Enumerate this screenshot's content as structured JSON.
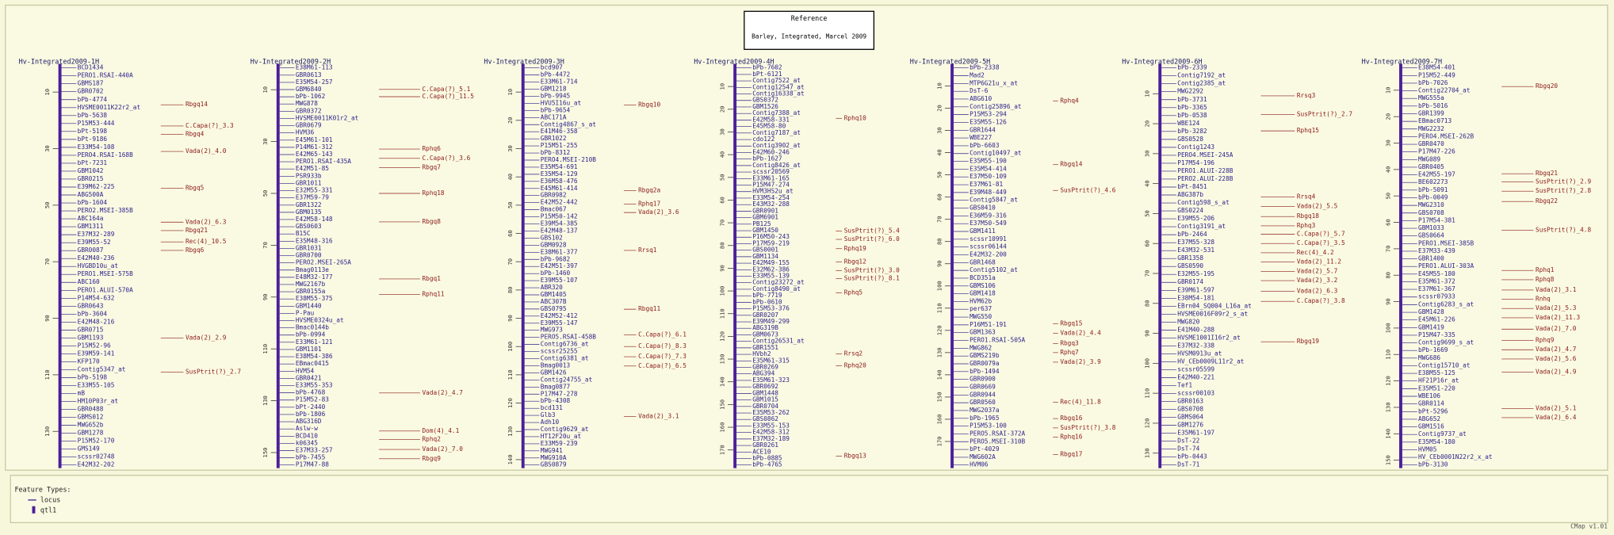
{
  "header": {
    "title": "Reference",
    "subtitle": "Barley, Integrated, Marcel 2009"
  },
  "maps": [
    {
      "title": "Hv-Integrated2009-1H",
      "ylim": [
        0,
        143
      ],
      "ticks": [
        10,
        30,
        50,
        70,
        90,
        110,
        130
      ],
      "loci": [
        "BCD1434",
        "PERO1.RSAI-440A",
        "GBMS187",
        "GBR0702",
        "bPb-4774",
        "HVSME0011K22r2_at",
        "bPb-5638",
        "P15M53-444",
        "bPt-5198",
        "bPt-9186",
        "E33M54-108",
        "PERO4.RSAI-168B",
        "bPt-7231",
        "GBM1042",
        "GBR0215",
        "E39M62-225",
        "ABG500A",
        "bPb-1604",
        "PERO2.MSEI-385B",
        "ABC164a",
        "GBM1311",
        "E37M32-289",
        "E39M55-52",
        "GBR0087",
        "E42M40-236",
        "HVGBD10u_at",
        "PERO1.MSEI-575B",
        "ABC160",
        "PERO1.ALUI-570A",
        "P14M54-632",
        "GBR0643",
        "bPb-3604",
        "E42M48-216",
        "GBR0715",
        "GBM1193",
        "P15M52-96",
        "E39M59-141",
        "KFP170",
        "Contig5347_at",
        "bPb-5198",
        "E33M55-105",
        "mB",
        "HM10P03r_at",
        "GBR0488",
        "GBMS012",
        "MWG652b",
        "GBM1278",
        "P15M52-170",
        "GMS149",
        "scssr02748",
        "E42M32-202"
      ],
      "qtls": [
        {
          "name": "Rbgq14",
          "position": 14.5
        },
        {
          "name": "C.Capa(?)_3.3",
          "position": 22
        },
        {
          "name": "Rbgq4",
          "position": 25
        },
        {
          "name": "Vada(2)_4.0",
          "position": 31
        },
        {
          "name": "Rbgq5",
          "position": 44
        },
        {
          "name": "Vada(2)_6.3",
          "position": 56
        },
        {
          "name": "Rbgq21",
          "position": 59
        },
        {
          "name": "Rec(4)_10.5",
          "position": 63
        },
        {
          "name": "Rbgq6",
          "position": 66
        },
        {
          "name": "Vada(2)_2.9",
          "position": 97
        },
        {
          "name": "SusPtrit(?)_2.7",
          "position": 109
        }
      ]
    },
    {
      "title": "Hv-Integrated2009-2H",
      "ylim": [
        0,
        156
      ],
      "ticks": [
        10,
        30,
        50,
        70,
        90,
        110,
        130,
        150
      ],
      "loci": [
        "E38M61-113",
        "GBR0613",
        "E35M54-257",
        "GBM6840",
        "bPb-1062",
        "MWG878",
        "GBR0372",
        "HVSME0011K01r2_at",
        "GBR0679",
        "HVM36",
        "E45M61-101",
        "P14M61-312",
        "E42M65-143",
        "PERO1.RSAI-435A",
        "E42M51-85",
        "PSR933b",
        "GBR1011",
        "E32M55-331",
        "E37M59-79",
        "GBR1322",
        "GBM0135",
        "E42M58-148",
        "GBS0603",
        "B15C",
        "E35M48-316",
        "GBR1031",
        "GBR0700",
        "PERO2.MSEI-265A",
        "Bmag0113e",
        "E48M32-177",
        "MWG2167b",
        "GBR0155a",
        "E38M55-375",
        "GBM1440",
        "P-Pau",
        "HVSME0324u_at",
        "Bmac0144b",
        "bPb-0994",
        "E33M61-121",
        "GBM1101",
        "E38M54-386",
        "EBmac0415",
        "HVM54",
        "GBR0421",
        "E33M55-353",
        "bPb-4768",
        "P15M52-83",
        "bPt-2440",
        "bPb-1806",
        "ABG316D",
        "Aslw-w",
        "BCD410",
        "k06345",
        "E37M33-257",
        "bPb-7455",
        "P17M47-88"
      ],
      "qtls": [
        {
          "name": "C.Capa(?)_5.1",
          "position": 9.9
        },
        {
          "name": "C.Capa(?)_11.5",
          "position": 12.7
        },
        {
          "name": "Rphq6",
          "position": 32.9
        },
        {
          "name": "C.Capa(?)_3.6",
          "position": 36.5
        },
        {
          "name": "Rbgq7",
          "position": 40
        },
        {
          "name": "Rphq18",
          "position": 50
        },
        {
          "name": "Rbgq8",
          "position": 61
        },
        {
          "name": "Rbgq1",
          "position": 83
        },
        {
          "name": "Rphq11",
          "position": 89
        },
        {
          "name": "Vada(2)_4.7",
          "position": 127
        },
        {
          "name": "Dom(4)_4.1",
          "position": 141.7
        },
        {
          "name": "Rphq2",
          "position": 145
        },
        {
          "name": "Vada(2)_7.0",
          "position": 148.8
        },
        {
          "name": "Rbgq9",
          "position": 152.4
        }
      ]
    },
    {
      "title": "Hv-Integrated2009-3H",
      "ylim": [
        0,
        143
      ],
      "ticks": [
        10,
        20,
        30,
        40,
        50,
        60,
        70,
        80,
        90,
        100,
        110,
        120,
        130,
        140
      ],
      "loci": [
        "bcd907",
        "bPb-4472",
        "E33M61-714",
        "GBM1218",
        "bPb-9945",
        "HVU5I16u_at",
        "bPb-9654",
        "ABC171A",
        "Contig4867_s_at",
        "E41M46-358",
        "GBR1022",
        "P15M51-255",
        "bPb-8312",
        "PERO4.MSEI-210B",
        "E35M54-691",
        "E35M54-129",
        "E36M58-476",
        "E45M61-414",
        "GBR0982",
        "E42M52-442",
        "Bmac067",
        "P15M50-142",
        "E39M54-385",
        "E42M48-137",
        "GBS102",
        "GBM0928",
        "E38M61-377",
        "bPb-9682",
        "E42M51-397",
        "bPb-1460",
        "E39M55-107",
        "ABR320",
        "GBM1405",
        "ABC307B",
        "GBS0795",
        "E42M52-412",
        "E39M55-147",
        "MWG973",
        "PERO5.RSAI-458B",
        "Contig6736_at",
        "scssr25255",
        "Contig6381_at",
        "Bmag0013",
        "GBM1426",
        "Contig24755_at",
        "Bmag0877",
        "P17M47-278",
        "bPb-4308",
        "bcd131",
        "Glb3",
        "Adh10",
        "Contig9629_at",
        "HT12F20u_at",
        "E33M59-239",
        "MWG941",
        "MWG910A",
        "GBS0879"
      ],
      "qtls": [
        {
          "name": "Rbgq10",
          "position": 14.6
        },
        {
          "name": "Rbgq2a",
          "position": 44.9
        },
        {
          "name": "Rphq17",
          "position": 49.6
        },
        {
          "name": "Vada(2)_3.6",
          "position": 52.6
        },
        {
          "name": "Rrsq1",
          "position": 66
        },
        {
          "name": "Rbgq11",
          "position": 86.8
        },
        {
          "name": "C.Capa(?)_6.1",
          "position": 95.9
        },
        {
          "name": "C.Capa(?)_8.3",
          "position": 100
        },
        {
          "name": "C.Capa(?)_7.3",
          "position": 103.6
        },
        {
          "name": "C.Capa(?)_6.5",
          "position": 106.9
        },
        {
          "name": "Vada(2)_3.1",
          "position": 124.8
        }
      ]
    },
    {
      "title": "Hv-Integrated2009-4H",
      "ylim": [
        0,
        178
      ],
      "ticks": [
        10,
        20,
        30,
        40,
        50,
        60,
        70,
        80,
        90,
        100,
        110,
        120,
        130,
        140,
        150,
        160,
        170
      ],
      "loci": [
        "bPb-7602",
        "bPt-6121",
        "Contig7522_at",
        "Contig12547_at",
        "Contig16338_at",
        "GBS0372",
        "GBM1526",
        "Contig7388_at",
        "E42M58-331",
        "E45M58-80",
        "Contig7187_at",
        "cdo122",
        "Contig3902_at",
        "E42M60-246",
        "bPb-1627",
        "Contig8426_at",
        "scssr20569",
        "E33M61-165",
        "P15M47-274",
        "HVM3HS2u_at",
        "E33M54-254",
        "E43M32-288",
        "GBR0901",
        "GBM6901",
        "PB125",
        "GBM1450",
        "P16M50-243",
        "P17M59-219",
        "GBS0001",
        "GBM1134",
        "E42M49-155",
        "E32M62-386",
        "E33M55-139",
        "Contig23272_at",
        "Contig8490_at",
        "bPb-7719",
        "bPb-0610",
        "P15M53-376",
        "GBR0207",
        "E39M49-299",
        "ABG319B",
        "GBM0673",
        "Contig26531_at",
        "GBR1551",
        "HVbh2",
        "E35M61-315",
        "GBR0269",
        "ABG394",
        "E35M61-323",
        "GBR0692",
        "GBM1448",
        "GBM1015",
        "GBR0704",
        "E35M53-262",
        "GBS0862",
        "E33M55-153",
        "E42M58-312",
        "E37M32-189",
        "GBR0261",
        "ACE10",
        "bPb-0885",
        "bPb-4765"
      ],
      "qtls": [
        {
          "name": "Rphq10",
          "position": 24
        },
        {
          "name": "SusPtrit(?)_5.4",
          "position": 73.6
        },
        {
          "name": "SusPtrit(?)_6.0",
          "position": 77.3
        },
        {
          "name": "Rphq19",
          "position": 81.4
        },
        {
          "name": "Rbgq12",
          "position": 87.3
        },
        {
          "name": "SusPtrit(?)_3.0",
          "position": 91
        },
        {
          "name": "SusPtrit(?)_8.1",
          "position": 94.5
        },
        {
          "name": "Rphq5",
          "position": 100.9
        },
        {
          "name": "Rrsq2",
          "position": 127.7
        },
        {
          "name": "Rphq20",
          "position": 133
        },
        {
          "name": "Rbgq13",
          "position": 172.7
        }
      ]
    },
    {
      "title": "Hv-Integrated2009-5H",
      "ylim": [
        0,
        182
      ],
      "ticks": [
        10,
        20,
        30,
        40,
        50,
        60,
        70,
        80,
        90,
        100,
        110,
        120,
        130,
        140,
        150,
        160,
        170
      ],
      "loci": [
        "bPb-2338",
        "Mad2",
        "MTP6G21u_x_at",
        "DsT-6",
        "ABG610",
        "Contig25896_at",
        "P15M53-294",
        "E35M55-126",
        "GBR1644",
        "WBE227",
        "bPb-6603",
        "Contig10497_at",
        "E35M55-190",
        "E35M54-414",
        "E37M50-109",
        "E37M61-81",
        "E39M48-449",
        "Contig5847_at",
        "GBS0410",
        "E36M59-316",
        "E37M50-549",
        "GBM1411",
        "scssr10991",
        "scssr06144",
        "E42M32-200",
        "GBR1468",
        "Contig5102_at",
        "BCD351a",
        "GBMS106",
        "GBM1418",
        "HVM62b",
        "per637",
        "MWG550",
        "P16M51-191",
        "GBM1363",
        "PERO1.RSAI-505A",
        "MWG862",
        "GBMS219b",
        "GBR0079a",
        "bPb-1494",
        "GBR0900",
        "GBR0669",
        "GBR0944",
        "GBR0560",
        "MWG2037a",
        "bPb-1965",
        "P15M53-100",
        "PERO5.RSAI-372A",
        "PERO5.MSEI-310B",
        "bPt-4029",
        "MWG602A",
        "HVM06"
      ],
      "qtls": [
        {
          "name": "Rphq4",
          "position": 16.7
        },
        {
          "name": "Rbgq14",
          "position": 45.4
        },
        {
          "name": "SusPtrit(?)_4.6",
          "position": 57
        },
        {
          "name": "Rbgq15",
          "position": 117
        },
        {
          "name": "Vada(2)_4.4",
          "position": 121.3
        },
        {
          "name": "Rbgq3",
          "position": 126
        },
        {
          "name": "Rphq7",
          "position": 130
        },
        {
          "name": "Vada(2)_3.9",
          "position": 134.3
        },
        {
          "name": "Rec(4)_11.8",
          "position": 152.3
        },
        {
          "name": "Rbgq16",
          "position": 159.7
        },
        {
          "name": "SusPtrit(?)_3.8",
          "position": 163.9
        },
        {
          "name": "Rphq16",
          "position": 168
        },
        {
          "name": "Rbgq17",
          "position": 175.9
        }
      ]
    },
    {
      "title": "Hv-Integrated2009-6H",
      "ylim": [
        0,
        135
      ],
      "ticks": [
        10,
        20,
        30,
        40,
        50,
        60,
        70,
        80,
        90,
        100,
        110,
        120,
        130
      ],
      "loci": [
        "bPb-2339",
        "Contig7192_at",
        "Contig2385_at",
        "MWG2292",
        "bPb-3731",
        "bPb-3365",
        "bPb-0538",
        "WBE124",
        "bPb-3282",
        "GBS0528",
        "Contig1243",
        "PERO4.MSEI-245A",
        "P17M54-196",
        "PERO1.ALUI-228B",
        "PERO2.ALUI-228B",
        "bPt-8451",
        "ABG387b",
        "Contig598_s_at",
        "GBS0224",
        "E39M55-206",
        "Contig3191_at",
        "bPb-2464",
        "E37M55-328",
        "E43M32-531",
        "GBR1358",
        "GBS0590",
        "E32M55-195",
        "GBR0174",
        "E39M61-597",
        "E38M54-181",
        "EBrn04_SQ004_L16a_at",
        "HVSME0016F09r2_s_at",
        "MWG820",
        "E41M40-288",
        "HVSME1001I16r2_at",
        "E37M32-338",
        "HVSM0913u_at",
        "HV_CEb0009L11r2_at",
        "scssr05599",
        "E42M40-221",
        "Tef1",
        "scssr00103",
        "GBR0163",
        "GBS0708",
        "GBMS064",
        "GBM1276",
        "E35M61-197",
        "DsT-22",
        "DsT-74",
        "bPb-0443",
        "DsT-71"
      ],
      "qtls": [
        {
          "name": "Rrsq3",
          "position": 10.7
        },
        {
          "name": "SusPtrit(?)_2.7",
          "position": 16.9
        },
        {
          "name": "Rphq15",
          "position": 22.4
        },
        {
          "name": "Rrsq4",
          "position": 44.5
        },
        {
          "name": "Vada(2)_5.5",
          "position": 47.6
        },
        {
          "name": "Rbgq18",
          "position": 51
        },
        {
          "name": "Rphq3",
          "position": 54.1
        },
        {
          "name": "C.Capa(?)_5.7",
          "position": 56.9
        },
        {
          "name": "C.Capa(?)_3.5",
          "position": 60
        },
        {
          "name": "Rec(4)_4.2",
          "position": 63.1
        },
        {
          "name": "Vada(2)_11.2",
          "position": 66.2
        },
        {
          "name": "Vada(2)_5.7",
          "position": 69.3
        },
        {
          "name": "Vada(2)_3.2",
          "position": 72.4
        },
        {
          "name": "Vada(2)_6.3",
          "position": 75.9
        },
        {
          "name": "C.Capa(?)_3.8",
          "position": 79.3
        },
        {
          "name": "Rbgq19",
          "position": 92.8
        }
      ]
    },
    {
      "title": "Hv-Integrated2009-7H",
      "ylim": [
        0,
        153
      ],
      "ticks": [
        10,
        20,
        30,
        40,
        50,
        60,
        70,
        80,
        90,
        100,
        110,
        120,
        130,
        140,
        150
      ],
      "loci": [
        "E38M54-401",
        "P15M52-449",
        "bPb-7026",
        "Contig22704_at",
        "MWG555a",
        "bPb-5016",
        "GBR1399",
        "EBmac0713",
        "MWG2232",
        "PERO4.MSEI-262B",
        "GBR0470",
        "P17M47-226",
        "MWG089",
        "GBR0405",
        "E42M55-197",
        "BE602273",
        "bPb-5091",
        "bPb-0049",
        "MWG2310",
        "GBS0708",
        "P17M54-381",
        "GBM1033",
        "GBS0664",
        "PERO1.MSEI-385B",
        "E37M33-439",
        "GBR1400",
        "PERO1.ALUI-303A",
        "E45M55-180",
        "E35M61-372",
        "E37M61-367",
        "scssr07933",
        "Contig6283_s_at",
        "GBM1428",
        "E45M61-226",
        "GBM1419",
        "P15M47-335",
        "Contig9699_s_at",
        "bPb-1669",
        "MWG686",
        "Contig15710_at",
        "E38M55-125",
        "HF21P16r_at",
        "E35M51-220",
        "WBE106",
        "GBR0114",
        "bPt-5296",
        "ABG652",
        "GBM1516",
        "Contig9737_at",
        "E35M54-180",
        "HVM05",
        "HV_CEb0001N22r2_x_at",
        "bPb-3130"
      ],
      "qtls": [
        {
          "name": "Rbgq20",
          "position": 8.6
        },
        {
          "name": "Rbgq21",
          "position": 41.6
        },
        {
          "name": "SusPtrit(?)_2.9",
          "position": 44.7
        },
        {
          "name": "SusPtrit(?)_2.8",
          "position": 48.2
        },
        {
          "name": "Rbgq22",
          "position": 52.1
        },
        {
          "name": "SusPtrit(?)_4.8",
          "position": 63
        },
        {
          "name": "Rphq1",
          "position": 78.2
        },
        {
          "name": "Rphq8",
          "position": 81.7
        },
        {
          "name": "Vada(2)_3.1",
          "position": 85.6
        },
        {
          "name": "Rnhq",
          "position": 89.1
        },
        {
          "name": "Vada(2)_5.3",
          "position": 92.6
        },
        {
          "name": "Vada(2)_11.3",
          "position": 96.1
        },
        {
          "name": "Vada(2)_7.0",
          "position": 100.4
        },
        {
          "name": "Rphq9",
          "position": 104.7
        },
        {
          "name": "Vada(2)_4.7",
          "position": 108.2
        },
        {
          "name": "Vada(2)_5.6",
          "position": 111.7
        },
        {
          "name": "Vada(2)_4.9",
          "position": 116.7
        },
        {
          "name": "Vada(2)_5.1",
          "position": 130.4
        },
        {
          "name": "Vada(2)_6.4",
          "position": 133.9
        }
      ]
    }
  ],
  "legend": {
    "title": "Feature Types:",
    "items": [
      "locus",
      "qtl1"
    ]
  },
  "footer": "CMap v1.01"
}
